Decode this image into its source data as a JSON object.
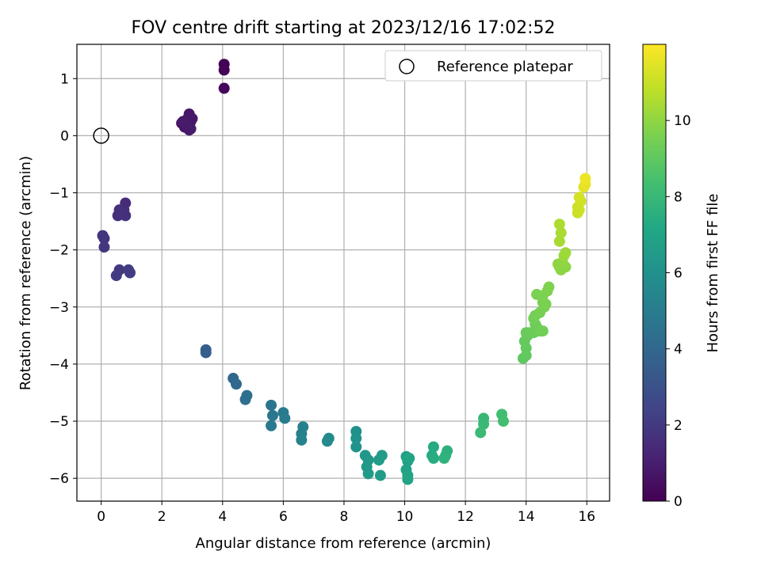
{
  "chart_data": {
    "type": "scatter",
    "title": "FOV centre drift starting at 2023/12/16 17:02:52",
    "xlabel": "Angular distance from reference (arcmin)",
    "ylabel": "Rotation from reference (arcmin)",
    "xlim": [
      -0.8,
      16.75
    ],
    "ylim": [
      -6.4,
      1.6
    ],
    "xticks": [
      0,
      2,
      4,
      6,
      8,
      10,
      12,
      14,
      16
    ],
    "yticks": [
      1,
      0,
      -1,
      -2,
      -3,
      -4,
      -5,
      -6
    ],
    "grid": true,
    "legend": {
      "placement": "top-right",
      "entries": [
        "Reference platepar"
      ]
    },
    "reference_point": {
      "x": 0,
      "y": 0
    },
    "colorbar": {
      "label": "Hours from first FF file",
      "range": [
        0,
        12
      ],
      "ticks": [
        0,
        2,
        4,
        6,
        8,
        10
      ],
      "colormap": "viridis"
    },
    "series": [
      {
        "points": [
          [
            4.05,
            1.25,
            0.0
          ],
          [
            4.05,
            1.15,
            0.1
          ],
          [
            4.05,
            0.83,
            0.2
          ],
          [
            2.65,
            0.22,
            0.6
          ],
          [
            2.75,
            0.15,
            0.65
          ],
          [
            2.85,
            0.3,
            0.7
          ],
          [
            2.9,
            0.38,
            0.72
          ],
          [
            2.95,
            0.25,
            0.75
          ],
          [
            3.0,
            0.3,
            0.78
          ],
          [
            2.9,
            0.1,
            0.8
          ],
          [
            2.8,
            0.18,
            0.82
          ],
          [
            2.7,
            0.25,
            0.85
          ],
          [
            2.95,
            0.12,
            0.88
          ],
          [
            0.8,
            -1.18,
            1.5
          ],
          [
            0.75,
            -1.3,
            1.55
          ],
          [
            0.6,
            -1.3,
            1.6
          ],
          [
            0.55,
            -1.4,
            1.62
          ],
          [
            0.8,
            -1.4,
            1.65
          ],
          [
            0.65,
            -1.35,
            1.68
          ],
          [
            0.05,
            -1.75,
            1.8
          ],
          [
            0.1,
            -1.8,
            1.85
          ],
          [
            0.1,
            -1.95,
            1.9
          ],
          [
            0.6,
            -2.35,
            2.0
          ],
          [
            0.5,
            -2.45,
            2.05
          ],
          [
            0.9,
            -2.35,
            2.1
          ],
          [
            0.95,
            -2.4,
            2.15
          ],
          [
            3.45,
            -3.75,
            3.5
          ],
          [
            3.45,
            -3.8,
            3.55
          ],
          [
            4.35,
            -4.25,
            4.0
          ],
          [
            4.45,
            -4.35,
            4.05
          ],
          [
            4.8,
            -4.55,
            4.3
          ],
          [
            4.75,
            -4.62,
            4.35
          ],
          [
            5.6,
            -4.72,
            4.7
          ],
          [
            5.65,
            -4.9,
            4.75
          ],
          [
            5.6,
            -5.08,
            4.8
          ],
          [
            6.0,
            -4.85,
            4.9
          ],
          [
            6.05,
            -4.95,
            4.95
          ],
          [
            6.65,
            -5.1,
            5.2
          ],
          [
            6.6,
            -5.22,
            5.25
          ],
          [
            6.6,
            -5.33,
            5.3
          ],
          [
            7.5,
            -5.3,
            5.6
          ],
          [
            7.45,
            -5.35,
            5.65
          ],
          [
            8.4,
            -5.18,
            6.0
          ],
          [
            8.4,
            -5.3,
            6.05
          ],
          [
            8.4,
            -5.45,
            6.1
          ],
          [
            8.7,
            -5.6,
            6.3
          ],
          [
            8.8,
            -5.68,
            6.35
          ],
          [
            8.75,
            -5.8,
            6.4
          ],
          [
            8.8,
            -5.92,
            6.45
          ],
          [
            9.25,
            -5.6,
            6.5
          ],
          [
            9.15,
            -5.68,
            6.55
          ],
          [
            9.2,
            -5.95,
            6.6
          ],
          [
            10.05,
            -5.62,
            6.8
          ],
          [
            10.1,
            -5.7,
            6.85
          ],
          [
            10.05,
            -5.85,
            6.9
          ],
          [
            10.1,
            -5.95,
            6.95
          ],
          [
            10.1,
            -6.02,
            7.0
          ],
          [
            10.15,
            -5.65,
            7.05
          ],
          [
            10.95,
            -5.45,
            7.3
          ],
          [
            10.9,
            -5.6,
            7.35
          ],
          [
            10.95,
            -5.65,
            7.4
          ],
          [
            11.4,
            -5.52,
            7.6
          ],
          [
            11.35,
            -5.6,
            7.65
          ],
          [
            11.3,
            -5.65,
            7.7
          ],
          [
            12.6,
            -4.95,
            8.0
          ],
          [
            12.6,
            -5.05,
            8.05
          ],
          [
            12.5,
            -5.2,
            8.1
          ],
          [
            13.2,
            -4.88,
            8.3
          ],
          [
            13.25,
            -5.0,
            8.35
          ],
          [
            13.9,
            -3.9,
            9.0
          ],
          [
            14.0,
            -3.85,
            9.05
          ],
          [
            14.0,
            -3.72,
            9.1
          ],
          [
            13.95,
            -3.6,
            9.12
          ],
          [
            14.05,
            -3.5,
            9.15
          ],
          [
            14.0,
            -3.45,
            9.18
          ],
          [
            14.1,
            -3.45,
            9.2
          ],
          [
            14.25,
            -3.45,
            9.25
          ],
          [
            14.3,
            -3.3,
            9.3
          ],
          [
            14.35,
            -3.35,
            9.32
          ],
          [
            14.4,
            -3.42,
            9.35
          ],
          [
            14.5,
            -3.42,
            9.38
          ],
          [
            14.55,
            -3.42,
            9.4
          ],
          [
            14.25,
            -3.2,
            9.42
          ],
          [
            14.3,
            -3.15,
            9.45
          ],
          [
            14.45,
            -3.1,
            9.5
          ],
          [
            14.6,
            -3.0,
            9.52
          ],
          [
            14.55,
            -2.92,
            9.55
          ],
          [
            14.65,
            -2.95,
            9.58
          ],
          [
            14.35,
            -2.78,
            9.6
          ],
          [
            14.55,
            -2.8,
            9.62
          ],
          [
            14.7,
            -2.72,
            9.65
          ],
          [
            14.75,
            -2.65,
            9.68
          ],
          [
            15.1,
            -2.3,
            9.9
          ],
          [
            15.15,
            -2.35,
            9.92
          ],
          [
            15.3,
            -2.3,
            9.95
          ],
          [
            15.05,
            -2.25,
            9.98
          ],
          [
            15.2,
            -2.22,
            10.0
          ],
          [
            15.25,
            -2.1,
            10.2
          ],
          [
            15.3,
            -2.05,
            10.25
          ],
          [
            15.1,
            -1.85,
            10.4
          ],
          [
            15.15,
            -1.7,
            10.45
          ],
          [
            15.1,
            -1.55,
            10.5
          ],
          [
            15.7,
            -1.35,
            11.0
          ],
          [
            15.7,
            -1.25,
            11.05
          ],
          [
            15.75,
            -1.3,
            11.1
          ],
          [
            15.8,
            -1.15,
            11.15
          ],
          [
            15.75,
            -1.08,
            11.2
          ],
          [
            15.9,
            -0.9,
            11.5
          ],
          [
            15.95,
            -0.85,
            11.6
          ],
          [
            15.95,
            -0.75,
            11.7
          ]
        ]
      }
    ]
  }
}
